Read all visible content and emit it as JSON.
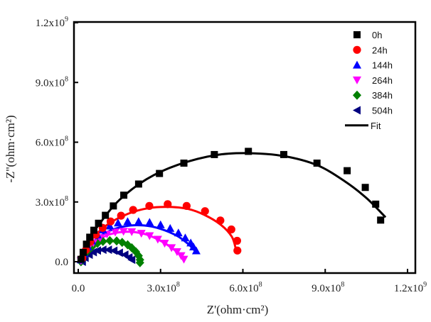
{
  "chart_data": {
    "type": "scatter",
    "title": "",
    "xlabel": "Z'(ohm·cm²)",
    "ylabel": "-Z''(ohm·cm²)",
    "units_note": "values in units of 1e8 ohm·cm²",
    "xlim": [
      0,
      12
    ],
    "ylim": [
      0,
      12
    ],
    "x_ticks": [
      0,
      3,
      6,
      9,
      12
    ],
    "y_ticks": [
      0,
      3,
      6,
      9,
      12
    ],
    "x_tick_labels": [
      {
        "m": "0.0",
        "e": ""
      },
      {
        "m": "3.0x10",
        "e": "8"
      },
      {
        "m": "6.0x10",
        "e": "8"
      },
      {
        "m": "9.0x10",
        "e": "8"
      },
      {
        "m": "1.2x10",
        "e": "9"
      }
    ],
    "y_tick_labels": [
      {
        "m": "0.0",
        "e": ""
      },
      {
        "m": "3.0x10",
        "e": "8"
      },
      {
        "m": "6.0x10",
        "e": "8"
      },
      {
        "m": "9.0x10",
        "e": "8"
      },
      {
        "m": "1.2x10",
        "e": "9"
      }
    ],
    "legend_position": "top-right",
    "fit_label": "Fit",
    "series": [
      {
        "name": "0h",
        "color": "#000000",
        "marker": "square",
        "fit_color": "#000000",
        "points": [
          [
            0.1,
            0.12
          ],
          [
            0.18,
            0.47
          ],
          [
            0.3,
            0.88
          ],
          [
            0.42,
            1.23
          ],
          [
            0.57,
            1.58
          ],
          [
            0.74,
            1.93
          ],
          [
            0.99,
            2.33
          ],
          [
            1.28,
            2.8
          ],
          [
            1.66,
            3.34
          ],
          [
            2.2,
            3.9
          ],
          [
            2.96,
            4.43
          ],
          [
            3.85,
            4.95
          ],
          [
            4.96,
            5.38
          ],
          [
            6.2,
            5.54
          ],
          [
            7.49,
            5.38
          ],
          [
            8.7,
            4.95
          ],
          [
            9.8,
            4.57
          ],
          [
            10.46,
            3.73
          ],
          [
            10.84,
            2.89
          ],
          [
            11.02,
            2.09
          ]
        ],
        "fit": [
          [
            0.05,
            0.0
          ],
          [
            0.3,
            0.9
          ],
          [
            0.8,
            1.95
          ],
          [
            1.5,
            3.1
          ],
          [
            2.5,
            4.15
          ],
          [
            3.6,
            4.85
          ],
          [
            5.0,
            5.35
          ],
          [
            6.2,
            5.45
          ],
          [
            7.5,
            5.3
          ],
          [
            8.7,
            4.85
          ],
          [
            9.7,
            4.05
          ],
          [
            10.5,
            3.2
          ],
          [
            11.2,
            2.23
          ]
        ]
      },
      {
        "name": "24h",
        "color": "#ff0000",
        "marker": "circle",
        "fit_color": "#ff0000",
        "points": [
          [
            0.15,
            0.18
          ],
          [
            0.28,
            0.59
          ],
          [
            0.44,
            1.0
          ],
          [
            0.64,
            1.35
          ],
          [
            0.89,
            1.7
          ],
          [
            1.18,
            2.02
          ],
          [
            1.56,
            2.31
          ],
          [
            2.0,
            2.6
          ],
          [
            2.59,
            2.8
          ],
          [
            3.26,
            2.89
          ],
          [
            3.95,
            2.8
          ],
          [
            4.62,
            2.54
          ],
          [
            5.18,
            2.07
          ],
          [
            5.58,
            1.62
          ],
          [
            5.79,
            1.05
          ],
          [
            5.8,
            0.56
          ]
        ],
        "fit": [
          [
            0.05,
            0.0
          ],
          [
            0.4,
            0.95
          ],
          [
            1.0,
            1.8
          ],
          [
            1.8,
            2.4
          ],
          [
            2.6,
            2.7
          ],
          [
            3.3,
            2.75
          ],
          [
            4.0,
            2.65
          ],
          [
            4.6,
            2.35
          ],
          [
            5.2,
            1.85
          ],
          [
            5.6,
            1.25
          ],
          [
            5.75,
            0.6
          ]
        ]
      },
      {
        "name": "144h",
        "color": "#0000ff",
        "marker": "triangle-up",
        "fit_color": "#0000ff",
        "points": [
          [
            0.1,
            0.1
          ],
          [
            0.2,
            0.4
          ],
          [
            0.35,
            0.75
          ],
          [
            0.5,
            1.05
          ],
          [
            0.7,
            1.35
          ],
          [
            0.9,
            1.6
          ],
          [
            1.15,
            1.8
          ],
          [
            1.45,
            1.95
          ],
          [
            1.8,
            2.02
          ],
          [
            2.2,
            2.02
          ],
          [
            2.6,
            1.98
          ],
          [
            3.0,
            1.86
          ],
          [
            3.35,
            1.68
          ],
          [
            3.65,
            1.45
          ],
          [
            3.9,
            1.2
          ],
          [
            4.1,
            0.95
          ],
          [
            4.2,
            0.75
          ],
          [
            4.3,
            0.55
          ]
        ],
        "fit": [
          [
            0.05,
            0.0
          ],
          [
            0.4,
            0.8
          ],
          [
            1.0,
            1.45
          ],
          [
            1.7,
            1.78
          ],
          [
            2.4,
            1.82
          ],
          [
            3.0,
            1.65
          ],
          [
            3.6,
            1.3
          ],
          [
            4.0,
            0.9
          ],
          [
            4.25,
            0.55
          ]
        ]
      },
      {
        "name": "264h",
        "color": "#ff00ff",
        "marker": "triangle-down",
        "fit_color": "#ff00ff",
        "points": [
          [
            0.1,
            0.05
          ],
          [
            0.2,
            0.35
          ],
          [
            0.35,
            0.65
          ],
          [
            0.55,
            0.95
          ],
          [
            0.8,
            1.2
          ],
          [
            1.05,
            1.38
          ],
          [
            1.35,
            1.48
          ],
          [
            1.65,
            1.52
          ],
          [
            1.95,
            1.5
          ],
          [
            2.3,
            1.42
          ],
          [
            2.6,
            1.3
          ],
          [
            2.9,
            1.12
          ],
          [
            3.15,
            0.92
          ],
          [
            3.4,
            0.7
          ],
          [
            3.6,
            0.5
          ],
          [
            3.75,
            0.3
          ],
          [
            3.85,
            0.12
          ]
        ],
        "fit": [
          [
            0.05,
            0.0
          ],
          [
            0.4,
            0.7
          ],
          [
            1.0,
            1.3
          ],
          [
            1.7,
            1.5
          ],
          [
            2.4,
            1.4
          ],
          [
            3.0,
            1.05
          ],
          [
            3.5,
            0.6
          ],
          [
            3.8,
            0.2
          ]
        ]
      },
      {
        "name": "384h",
        "color": "#008000",
        "marker": "diamond",
        "fit_color": "#8a8a2a",
        "points": [
          [
            0.1,
            0.0
          ],
          [
            0.2,
            0.3
          ],
          [
            0.35,
            0.55
          ],
          [
            0.5,
            0.75
          ],
          [
            0.7,
            0.92
          ],
          [
            0.9,
            1.02
          ],
          [
            1.15,
            1.06
          ],
          [
            1.4,
            1.04
          ],
          [
            1.6,
            0.97
          ],
          [
            1.8,
            0.85
          ],
          [
            1.95,
            0.7
          ],
          [
            2.1,
            0.5
          ],
          [
            2.2,
            0.3
          ],
          [
            2.25,
            0.1
          ],
          [
            2.25,
            -0.05
          ]
        ],
        "fit": [
          [
            0.05,
            0.0
          ],
          [
            0.35,
            0.55
          ],
          [
            0.8,
            0.95
          ],
          [
            1.3,
            1.02
          ],
          [
            1.8,
            0.85
          ],
          [
            2.1,
            0.5
          ],
          [
            2.22,
            0.1
          ]
        ]
      },
      {
        "name": "504h",
        "color": "#000080",
        "marker": "triangle-left",
        "fit_color": "#000080",
        "points": [
          [
            0.15,
            0.0
          ],
          [
            0.25,
            0.2
          ],
          [
            0.4,
            0.35
          ],
          [
            0.55,
            0.48
          ],
          [
            0.7,
            0.56
          ],
          [
            0.9,
            0.6
          ],
          [
            1.1,
            0.6
          ],
          [
            1.3,
            0.55
          ],
          [
            1.5,
            0.45
          ],
          [
            1.7,
            0.35
          ],
          [
            1.85,
            0.22
          ],
          [
            1.95,
            0.1
          ]
        ],
        "fit": [
          [
            0.1,
            0.0
          ],
          [
            0.4,
            0.35
          ],
          [
            0.9,
            0.58
          ],
          [
            1.4,
            0.5
          ],
          [
            1.8,
            0.25
          ],
          [
            1.95,
            0.08
          ]
        ]
      }
    ]
  }
}
